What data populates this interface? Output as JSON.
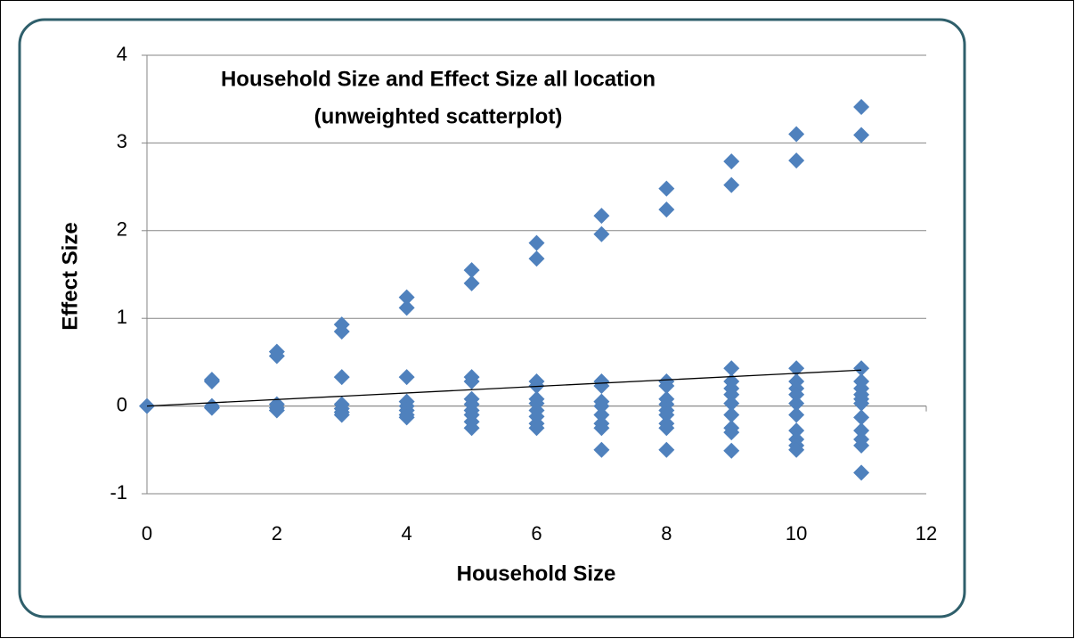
{
  "chart_data": {
    "type": "scatter",
    "title": "Household Size and Effect Size all location",
    "subtitle": "(unweighted scatterplot)",
    "x_label": "Household Size",
    "y_label": "Effect Size",
    "color": "#4f81bd",
    "xlim": [
      0,
      12
    ],
    "ylim": [
      -1,
      4
    ],
    "xticks": [
      0,
      2,
      4,
      6,
      8,
      10,
      12
    ],
    "yticks": [
      -1,
      0,
      1,
      2,
      3,
      4
    ],
    "grid": true,
    "x": [
      0,
      1,
      1,
      1,
      1,
      2,
      2,
      2,
      2,
      2,
      3,
      3,
      3,
      3,
      3,
      3,
      3,
      4,
      4,
      4,
      4,
      4,
      4,
      4,
      4,
      5,
      5,
      5,
      5,
      5,
      5,
      5,
      5,
      5,
      5,
      6,
      6,
      6,
      6,
      6,
      6,
      6,
      6,
      6,
      6,
      7,
      7,
      7,
      7,
      7,
      7,
      7,
      7,
      7,
      7,
      8,
      8,
      8,
      8,
      8,
      8,
      8,
      8,
      8,
      8,
      8,
      9,
      9,
      9,
      9,
      9,
      9,
      9,
      9,
      9,
      9,
      9,
      10,
      10,
      10,
      10,
      10,
      10,
      10,
      10,
      10,
      10,
      10,
      10,
      11,
      11,
      11,
      11,
      11,
      11,
      11,
      11,
      11,
      11,
      11,
      11,
      11
    ],
    "y": [
      0,
      0.3,
      0.28,
      0.0,
      -0.02,
      0.62,
      0.57,
      0.02,
      -0.02,
      -0.05,
      0.93,
      0.85,
      0.33,
      0.02,
      -0.03,
      -0.07,
      -0.1,
      1.24,
      1.12,
      0.33,
      0.05,
      0.0,
      -0.05,
      -0.1,
      -0.13,
      1.55,
      1.4,
      0.33,
      0.28,
      0.08,
      0.02,
      -0.05,
      -0.1,
      -0.18,
      -0.25,
      1.86,
      1.68,
      0.28,
      0.23,
      0.08,
      0.03,
      -0.05,
      -0.12,
      -0.2,
      -0.25,
      2.17,
      1.96,
      0.28,
      0.23,
      0.05,
      0.0,
      -0.1,
      -0.2,
      -0.25,
      -0.5,
      2.48,
      2.24,
      0.28,
      0.23,
      0.08,
      0.02,
      -0.05,
      -0.1,
      -0.2,
      -0.25,
      -0.5,
      2.79,
      2.52,
      0.43,
      0.28,
      0.2,
      0.13,
      0.03,
      -0.1,
      -0.25,
      -0.3,
      -0.51,
      3.1,
      2.8,
      0.43,
      0.28,
      0.2,
      0.13,
      0.03,
      -0.1,
      -0.28,
      -0.38,
      -0.45,
      -0.5,
      3.41,
      3.09,
      0.43,
      0.28,
      0.2,
      0.13,
      0.08,
      0.03,
      -0.13,
      -0.28,
      -0.38,
      -0.45,
      -0.76
    ],
    "trendline": {
      "x": [
        0,
        11
      ],
      "y": [
        0,
        0.41
      ]
    }
  }
}
